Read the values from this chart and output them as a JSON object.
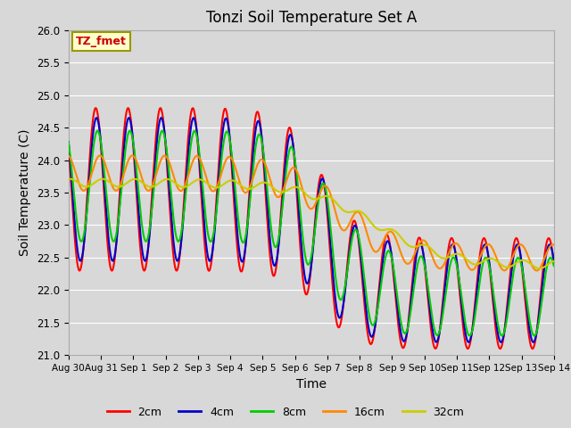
{
  "title": "Tonzi Soil Temperature Set A",
  "xlabel": "Time",
  "ylabel": "Soil Temperature (C)",
  "ylim": [
    21.0,
    26.0
  ],
  "yticks": [
    21.0,
    21.5,
    22.0,
    22.5,
    23.0,
    23.5,
    24.0,
    24.5,
    25.0,
    25.5,
    26.0
  ],
  "xtick_labels": [
    "Aug 30",
    "Aug 31",
    "Sep 1",
    "Sep 2",
    "Sep 3",
    "Sep 4",
    "Sep 5",
    "Sep 6",
    "Sep 7",
    "Sep 8",
    "Sep 9",
    "Sep 10",
    "Sep 11",
    "Sep 12",
    "Sep 13",
    "Sep 14"
  ],
  "legend_label": "TZ_fmet",
  "legend_box_color": "#ffffcc",
  "legend_box_edge": "#999900",
  "series_labels": [
    "2cm",
    "4cm",
    "8cm",
    "16cm",
    "32cm"
  ],
  "series_colors": [
    "#ff0000",
    "#0000cc",
    "#00cc00",
    "#ff8800",
    "#cccc00"
  ],
  "line_width": 1.5,
  "bg_color": "#d8d8d8",
  "grid_color": "#ffffff",
  "title_fontsize": 12,
  "axis_label_fontsize": 10
}
